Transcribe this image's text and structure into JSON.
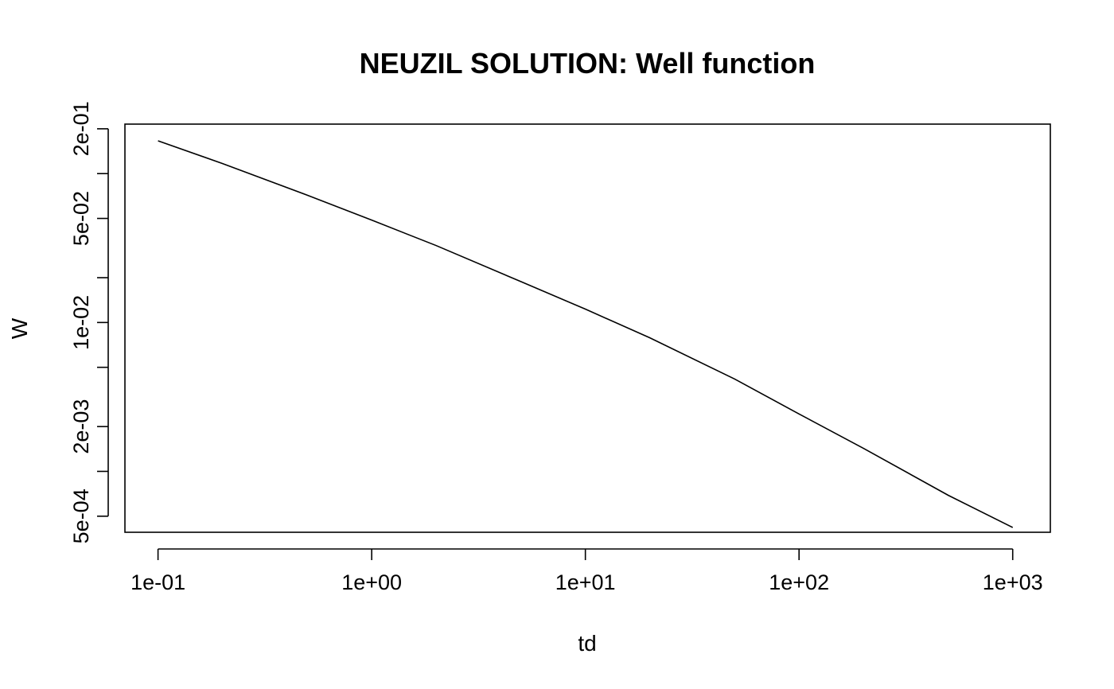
{
  "chart_data": {
    "type": "line",
    "title": "NEUZIL SOLUTION: Well function",
    "xlabel": "td",
    "ylabel": "W",
    "x_scale": "log",
    "y_scale": "log",
    "xlim": [
      0.07,
      1500
    ],
    "ylim": [
      0.00039,
      0.215
    ],
    "x_ticks": [
      {
        "value": 0.1,
        "label": "1e-01"
      },
      {
        "value": 1,
        "label": "1e+00"
      },
      {
        "value": 10,
        "label": "1e+01"
      },
      {
        "value": 100,
        "label": "1e+02"
      },
      {
        "value": 1000,
        "label": "1e+03"
      }
    ],
    "y_ticks": [
      {
        "value": 0.2,
        "label": "2e-01"
      },
      {
        "value": 0.1,
        "label": ""
      },
      {
        "value": 0.05,
        "label": "5e-02"
      },
      {
        "value": 0.02,
        "label": ""
      },
      {
        "value": 0.01,
        "label": "1e-02"
      },
      {
        "value": 0.005,
        "label": ""
      },
      {
        "value": 0.002,
        "label": "2e-03"
      },
      {
        "value": 0.001,
        "label": ""
      },
      {
        "value": 0.0005,
        "label": "5e-04"
      }
    ],
    "grid": false,
    "legend": "none",
    "series": [
      {
        "color": "#000000",
        "x": [
          0.1,
          0.2,
          0.5,
          1,
          2,
          5,
          10,
          20,
          50,
          100,
          200,
          500,
          1000
        ],
        "y": [
          0.166,
          0.117,
          0.0716,
          0.0487,
          0.0329,
          0.0188,
          0.0123,
          0.0079,
          0.00417,
          0.00243,
          0.00143,
          0.00069,
          0.00042
        ]
      }
    ]
  }
}
